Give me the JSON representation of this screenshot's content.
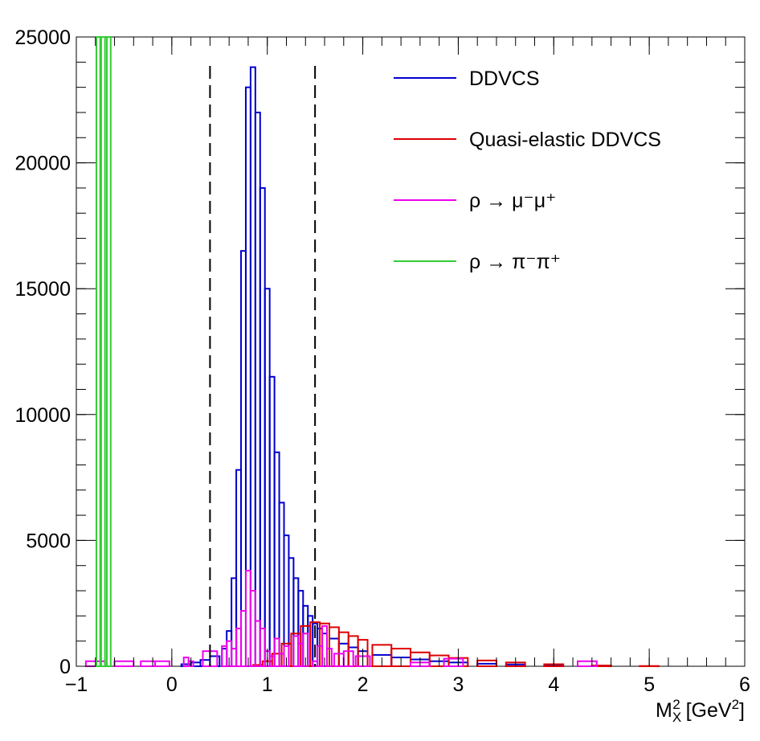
{
  "chart_data": {
    "type": "histogram",
    "title": "",
    "xlabel": "M_X^2 [GeV^2]",
    "xlabel_parts": {
      "base": "M",
      "sub": "X",
      "sup": "2",
      "unit_open": " [GeV",
      "unit_sup": "2",
      "unit_close": "]"
    },
    "ylabel": "",
    "xlim": [
      -1,
      6
    ],
    "ylim": [
      0,
      25000
    ],
    "x_ticks": [
      -1,
      0,
      1,
      2,
      3,
      4,
      5,
      6
    ],
    "x_tick_labels": [
      "−1",
      "0",
      "1",
      "2",
      "3",
      "4",
      "5",
      "6"
    ],
    "y_ticks": [
      0,
      5000,
      10000,
      15000,
      20000,
      25000
    ],
    "y_tick_labels": [
      "0",
      "5000",
      "10000",
      "15000",
      "20000",
      "25000"
    ],
    "cut_lines_x": [
      0.4,
      1.5
    ],
    "legend": [
      {
        "label": "DDVCS",
        "color": "#0000cc"
      },
      {
        "label": "Quasi-elastic DDVCS",
        "color": "#dd0000"
      },
      {
        "label": "ρ → μ⁻μ⁺",
        "color": "#ee00ee"
      },
      {
        "label": "ρ → π⁻π⁺",
        "color": "#33cc33"
      }
    ],
    "series": [
      {
        "name": "DDVCS",
        "color": "#0000cc",
        "x": [
          0.15,
          0.25,
          0.35,
          0.45,
          0.55,
          0.6,
          0.65,
          0.7,
          0.75,
          0.8,
          0.85,
          0.9,
          0.95,
          1.0,
          1.05,
          1.1,
          1.15,
          1.2,
          1.25,
          1.3,
          1.35,
          1.4,
          1.45,
          1.5,
          1.55,
          1.6,
          1.7,
          1.8,
          1.9,
          2.0,
          2.2,
          2.4,
          2.6,
          2.8,
          3.0,
          3.3,
          3.6,
          4.0,
          4.5
        ],
        "y": [
          80,
          150,
          250,
          400,
          700,
          1400,
          3500,
          7800,
          16500,
          23000,
          23800,
          22000,
          19000,
          15000,
          11500,
          8500,
          6500,
          5200,
          4300,
          3500,
          3000,
          2400,
          2000,
          1700,
          1500,
          1300,
          1100,
          900,
          750,
          600,
          450,
          350,
          270,
          200,
          150,
          100,
          70,
          40,
          20
        ]
      },
      {
        "name": "Quasi-elastic DDVCS",
        "color": "#dd0000",
        "x": [
          0.9,
          1.0,
          1.1,
          1.2,
          1.3,
          1.4,
          1.5,
          1.6,
          1.7,
          1.8,
          1.9,
          2.0,
          2.2,
          2.4,
          2.6,
          2.8,
          3.0,
          3.3,
          3.6,
          4.0,
          4.5,
          5.0
        ],
        "y": [
          50,
          200,
          500,
          900,
          1300,
          1600,
          1750,
          1700,
          1550,
          1350,
          1200,
          1050,
          850,
          700,
          550,
          430,
          330,
          230,
          150,
          80,
          30,
          10
        ]
      },
      {
        "name": "ρ → μ⁻μ⁺",
        "color": "#ee00ee",
        "x": [
          -0.8,
          -0.5,
          -0.25,
          -0.1,
          0.15,
          0.2,
          0.4,
          0.55,
          0.6,
          0.65,
          0.7,
          0.75,
          0.8,
          0.85,
          0.9,
          0.95,
          1.0,
          1.05,
          1.1,
          1.15,
          1.2,
          1.3,
          1.35,
          1.4,
          1.5,
          1.55,
          1.6,
          1.65,
          1.75,
          1.85,
          2.0,
          2.6,
          2.95,
          4.35
        ],
        "y": [
          200,
          200,
          200,
          200,
          350,
          200,
          600,
          800,
          1000,
          700,
          1500,
          2200,
          3800,
          3000,
          1800,
          1500,
          600,
          400,
          1100,
          500,
          800,
          1200,
          900,
          1300,
          200,
          800,
          1600,
          700,
          500,
          600,
          400,
          150,
          300,
          200
        ]
      },
      {
        "name": "ρ → π⁻π⁺",
        "color": "#33cc33",
        "x": [
          -0.77,
          -0.72,
          -0.66
        ],
        "y": [
          25000,
          25000,
          25000
        ]
      }
    ]
  }
}
